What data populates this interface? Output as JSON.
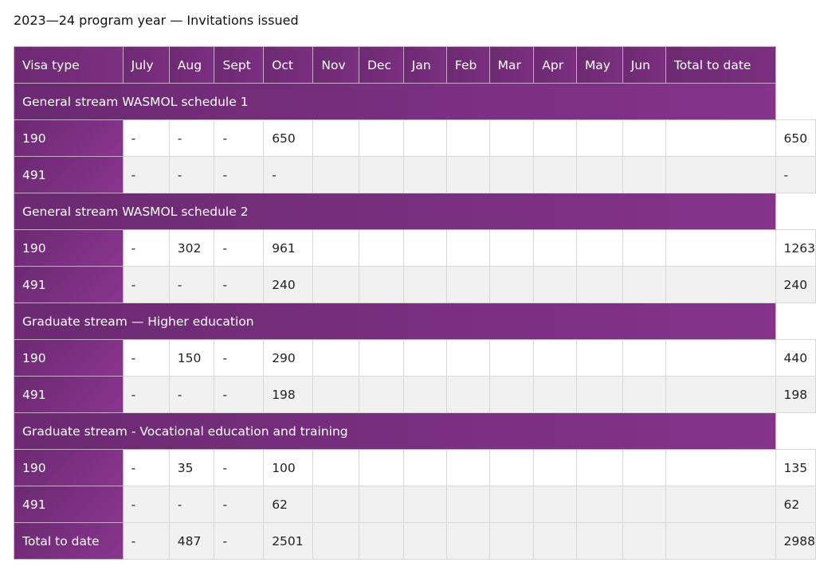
{
  "caption": "2023—24 program year — Invitations issued",
  "columns": [
    "Visa type",
    "July",
    "Aug",
    "Sept",
    "Oct",
    "Nov",
    "Dec",
    "Jan",
    "Feb",
    "Mar",
    "Apr",
    "May",
    "Jun",
    "Total to date"
  ],
  "sections": [
    {
      "title": "General stream WASMOL schedule 1",
      "rows": [
        {
          "label": "190",
          "values": [
            "-",
            "-",
            "-",
            "650",
            "",
            "",
            "",
            "",
            "",
            "",
            "",
            "",
            ""
          ],
          "total": "650"
        },
        {
          "label": "491",
          "values": [
            "-",
            "-",
            "-",
            "-",
            "",
            "",
            "",
            "",
            "",
            "",
            "",
            "",
            ""
          ],
          "total": "-"
        }
      ]
    },
    {
      "title": "General stream WASMOL schedule 2",
      "rows": [
        {
          "label": "190",
          "values": [
            "-",
            "302",
            "-",
            "961",
            "",
            "",
            "",
            "",
            "",
            "",
            "",
            "",
            ""
          ],
          "total": "1263"
        },
        {
          "label": "491",
          "values": [
            "-",
            "-",
            "-",
            "240",
            "",
            "",
            "",
            "",
            "",
            "",
            "",
            "",
            ""
          ],
          "total": "240"
        }
      ]
    },
    {
      "title": "Graduate stream — Higher education",
      "rows": [
        {
          "label": "190",
          "values": [
            "-",
            "150",
            "-",
            "290",
            "",
            "",
            "",
            "",
            "",
            "",
            "",
            "",
            ""
          ],
          "total": "440"
        },
        {
          "label": "491",
          "values": [
            "-",
            "-",
            "-",
            "198",
            "",
            "",
            "",
            "",
            "",
            "",
            "",
            "",
            ""
          ],
          "total": "198"
        }
      ]
    },
    {
      "title": "Graduate stream - Vocational education and training",
      "rows": [
        {
          "label": "190",
          "values": [
            "-",
            "35",
            "-",
            "100",
            "",
            "",
            "",
            "",
            "",
            "",
            "",
            "",
            ""
          ],
          "total": "135"
        },
        {
          "label": "491",
          "values": [
            "-",
            "-",
            "-",
            "62",
            "",
            "",
            "",
            "",
            "",
            "",
            "",
            "",
            ""
          ],
          "total": "62"
        }
      ]
    }
  ],
  "totals": {
    "label": "Total to date",
    "values": [
      "-",
      "487",
      "-",
      "2501",
      "",
      "",
      "",
      "",
      "",
      "",
      "",
      "",
      ""
    ],
    "total": "2988"
  }
}
